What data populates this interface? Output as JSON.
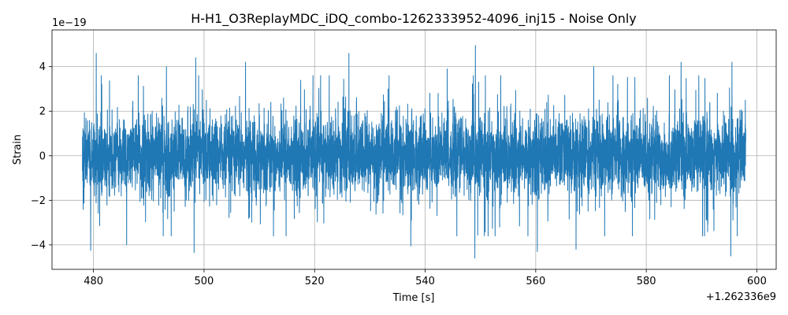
{
  "chart_data": {
    "type": "line",
    "title": "H-H1_O3ReplayMDC_iDQ_combo-1262333952-4096_inj15 - Noise Only",
    "xlabel": "Time [s]",
    "ylabel": "Strain",
    "x_offset_label": "+1.262336e9",
    "y_scale_label": "1e−19",
    "xlim": [
      472.5,
      603.5
    ],
    "ylim": [
      -5.1,
      5.65
    ],
    "xticks": [
      480,
      500,
      520,
      540,
      560,
      580,
      600
    ],
    "xtick_labels": [
      "480",
      "500",
      "520",
      "540",
      "560",
      "580",
      "600"
    ],
    "yticks": [
      -4,
      -2,
      0,
      2,
      4
    ],
    "ytick_labels": [
      "−4",
      "−2",
      "0",
      "2",
      "4"
    ],
    "grid": true,
    "color": "#1f77b4",
    "series": [
      {
        "x_start": 478,
        "x_end": 598,
        "typical_amplitude": 1.2,
        "envelope_amplitude": 3.0,
        "max_value": 4.95,
        "min_value": -4.6
      }
    ],
    "peaks": [
      {
        "x": 480.5,
        "y": 4.6
      },
      {
        "x": 481.5,
        "y": 3.2
      },
      {
        "x": 493.2,
        "y": 4.0
      },
      {
        "x": 498.5,
        "y": 4.4
      },
      {
        "x": 507.5,
        "y": 4.2
      },
      {
        "x": 526.2,
        "y": 4.6
      },
      {
        "x": 549.1,
        "y": 4.95
      },
      {
        "x": 544.0,
        "y": 3.9
      },
      {
        "x": 570.5,
        "y": 4.0
      },
      {
        "x": 586.3,
        "y": 4.2
      },
      {
        "x": 595.5,
        "y": 4.2
      },
      {
        "x": 479.5,
        "y": -4.25
      },
      {
        "x": 498.2,
        "y": -4.35
      },
      {
        "x": 486.0,
        "y": -4.0
      },
      {
        "x": 537.4,
        "y": -4.05
      },
      {
        "x": 549.0,
        "y": -4.6
      },
      {
        "x": 560.3,
        "y": -4.3
      },
      {
        "x": 567.3,
        "y": -4.2
      },
      {
        "x": 595.3,
        "y": -4.5
      }
    ]
  }
}
